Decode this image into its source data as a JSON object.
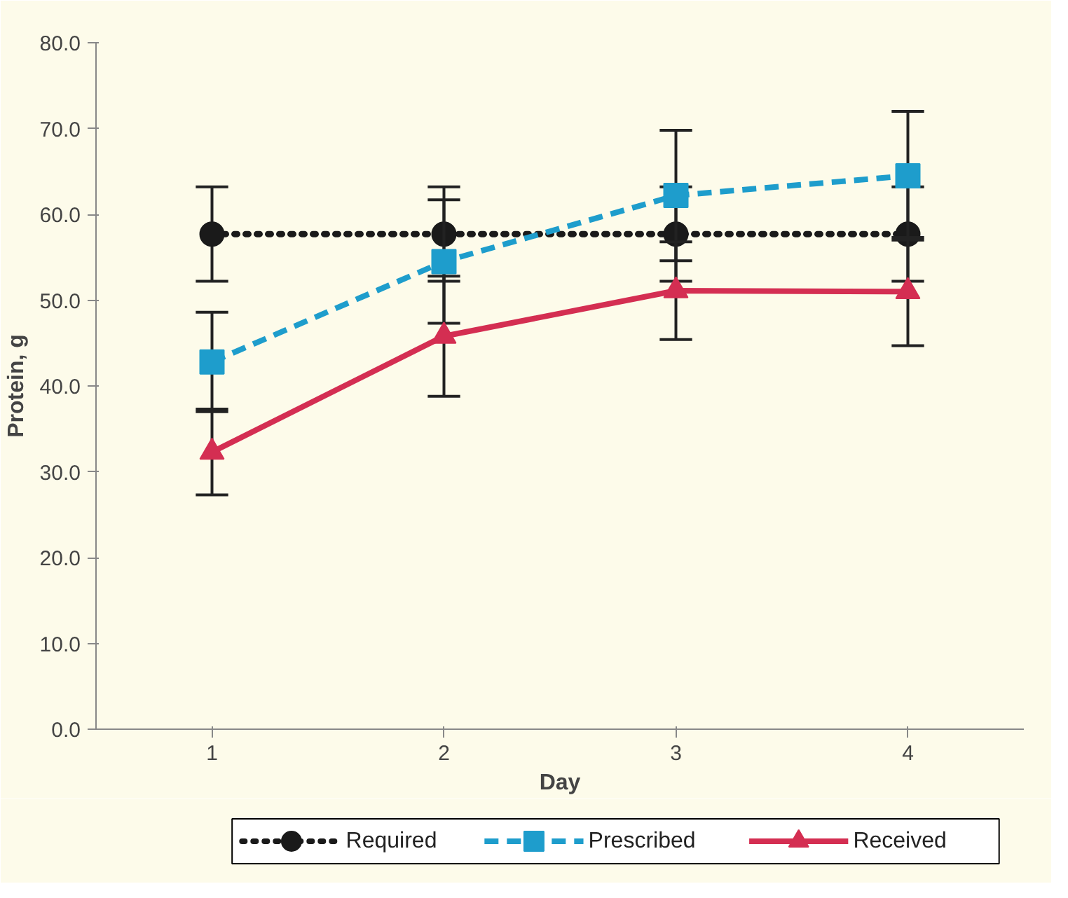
{
  "chart_data": {
    "type": "line",
    "xlabel": "Day",
    "ylabel": "Protein, g",
    "categories": [
      "1",
      "2",
      "3",
      "4"
    ],
    "ylim": [
      0,
      80
    ],
    "yticks": [
      {
        "value": 0,
        "label": "0.0"
      },
      {
        "value": 10,
        "label": "10.0"
      },
      {
        "value": 20,
        "label": "20.0"
      },
      {
        "value": 30,
        "label": "30.0"
      },
      {
        "value": 40,
        "label": "40.0"
      },
      {
        "value": 50,
        "label": "50.0"
      },
      {
        "value": 60,
        "label": "60.0"
      },
      {
        "value": 70,
        "label": "70.0"
      },
      {
        "value": 80,
        "label": "80.0"
      }
    ],
    "grid": false,
    "legend": "bottom",
    "series": [
      {
        "name": "Required",
        "color": "#1a1a1a",
        "values": [
          57.7,
          57.7,
          57.7,
          57.7
        ],
        "errors": [
          5.5,
          5.5,
          5.5,
          5.5
        ],
        "marker": "circle",
        "line_style": "dotted"
      },
      {
        "name": "Prescribed",
        "color": "#1e9dcc",
        "values": [
          42.8,
          54.5,
          62.2,
          64.5
        ],
        "errors": [
          5.8,
          7.2,
          7.6,
          7.5
        ],
        "marker": "square",
        "line_style": "dashed"
      },
      {
        "name": "Received",
        "color": "#d42e52",
        "values": [
          32.3,
          45.8,
          51.1,
          51.0
        ],
        "errors": [
          5.0,
          7.0,
          5.7,
          6.3
        ],
        "marker": "triangle",
        "line_style": "solid"
      }
    ]
  }
}
